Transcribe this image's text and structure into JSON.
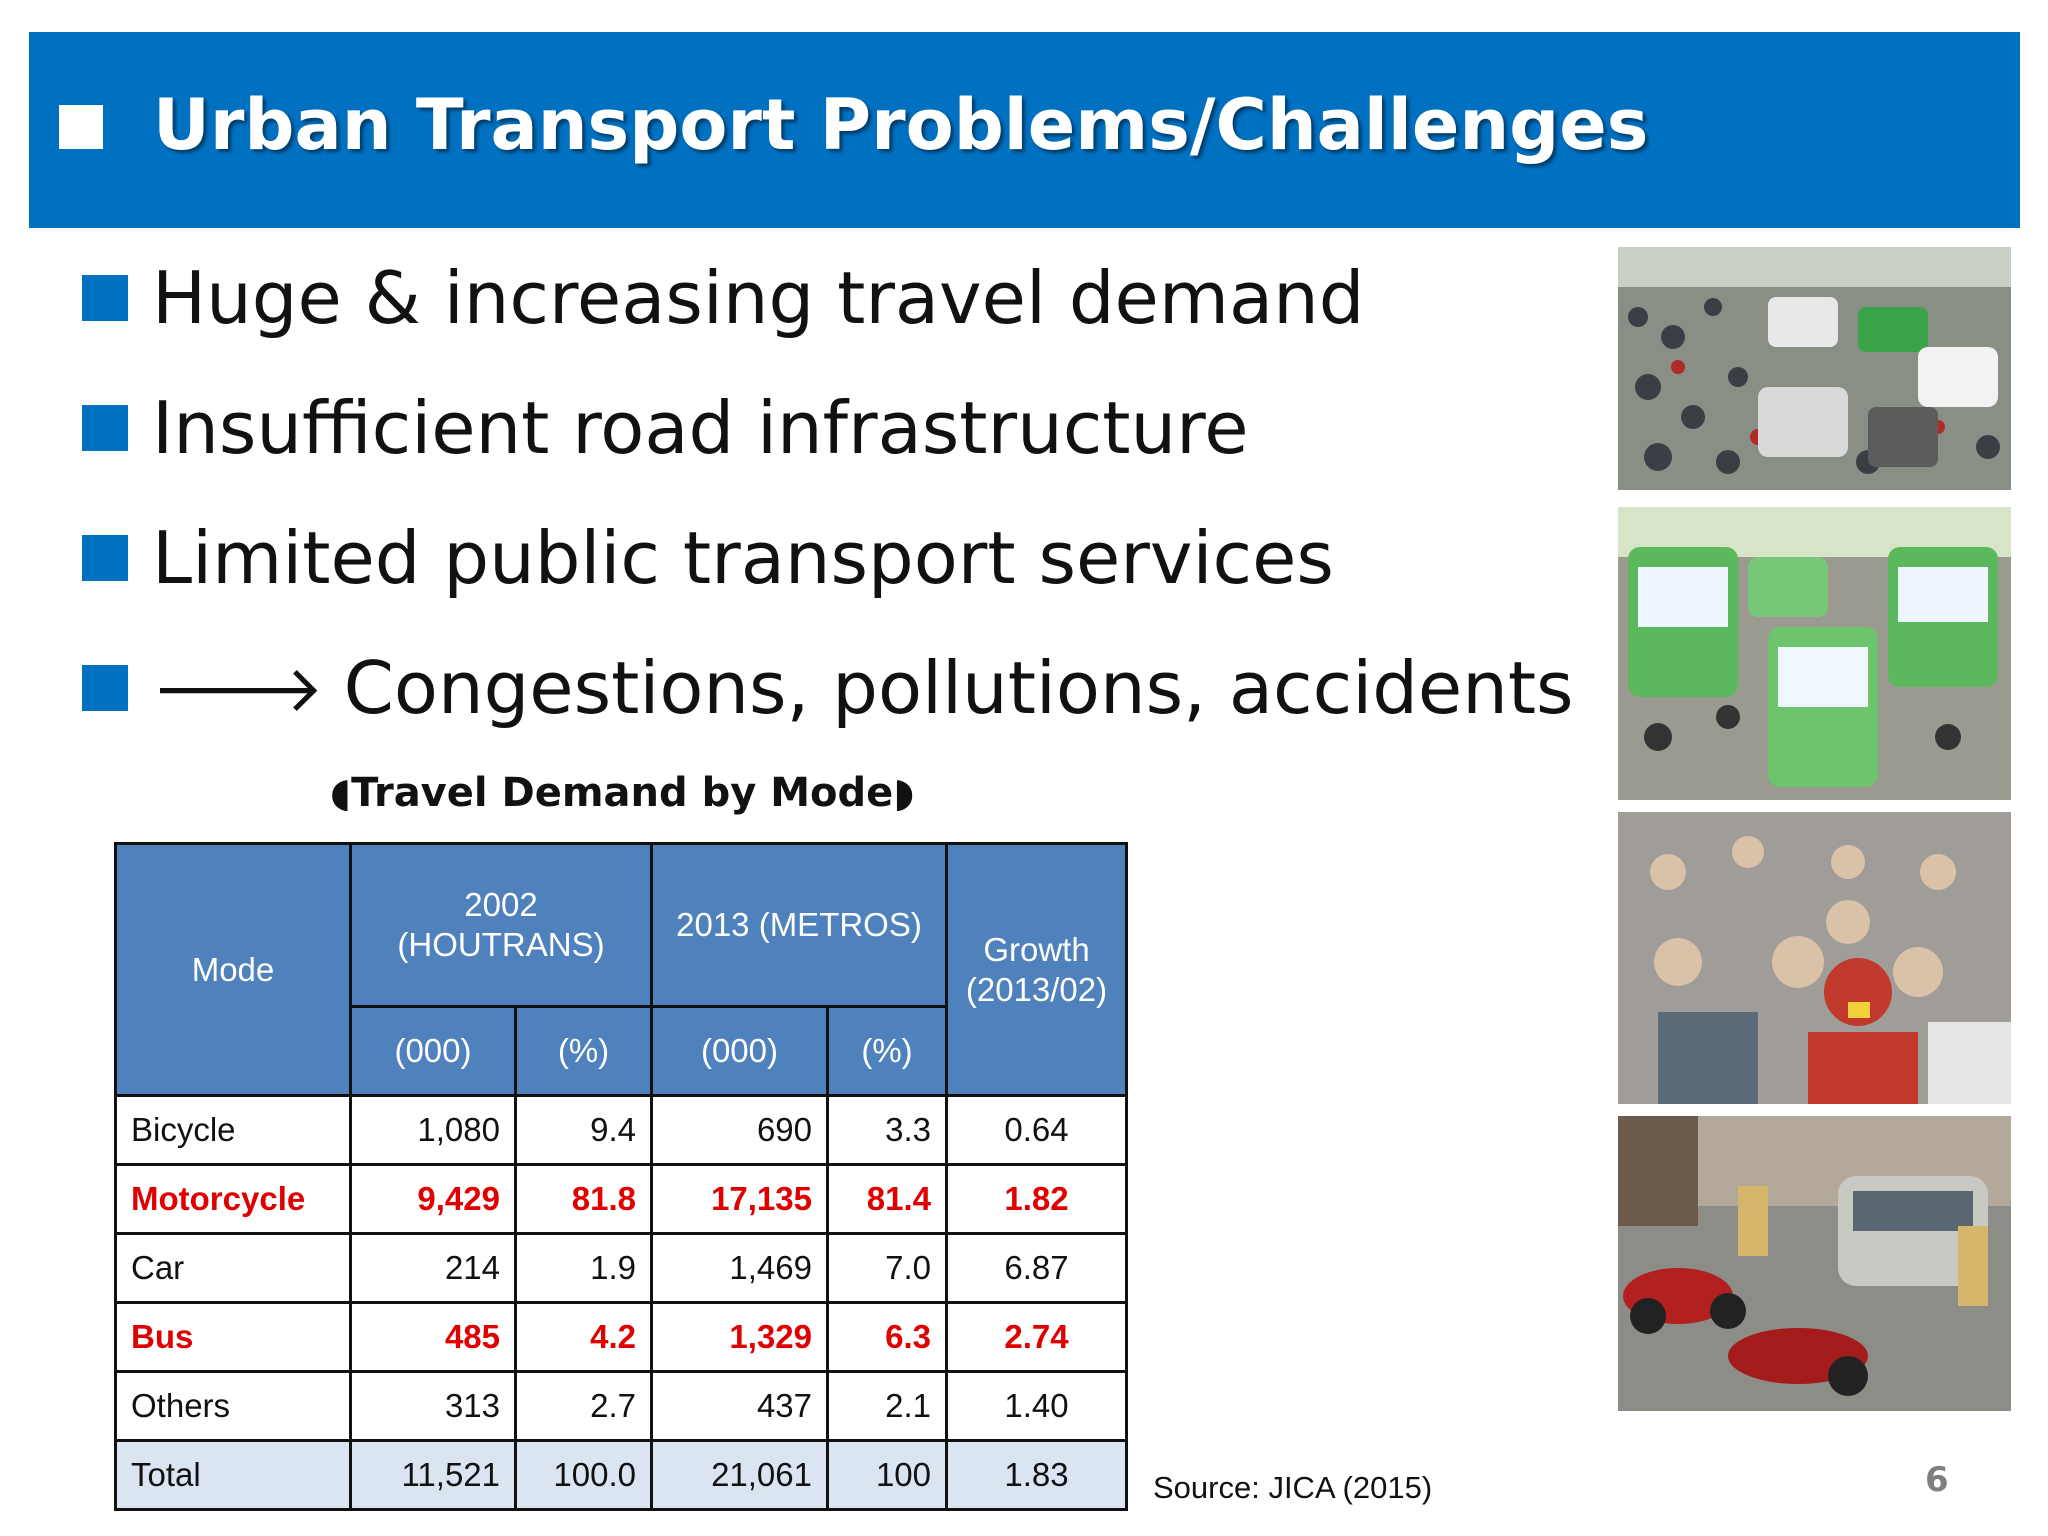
{
  "header": {
    "title": "Urban Transport Problems/Challenges"
  },
  "bullets": [
    {
      "text": "Huge & increasing travel demand"
    },
    {
      "text": "Insufficient road infrastructure"
    },
    {
      "text": "Limited public transport services"
    },
    {
      "arrow": "🡒",
      "text": "Congestions, pollutions, accidents"
    }
  ],
  "table": {
    "caption": "◖Travel Demand by Mode◗",
    "headers": {
      "mode": "Mode",
      "y2002": "2002 (HOUTRANS)",
      "y2013": "2013 (METROS)",
      "growth": "Growth (2013/02)",
      "k2002": "(000)",
      "p2002": "(%)",
      "k2013": "(000)",
      "p2013": "(%)"
    },
    "rows": [
      {
        "mode": "Bicycle",
        "k2002": "1,080",
        "p2002": "9.4",
        "k2013": "690",
        "p2013": "3.3",
        "growth": "0.64"
      },
      {
        "mode": "Motorcycle",
        "k2002": "9,429",
        "p2002": "81.8",
        "k2013": "17,135",
        "p2013": "81.4",
        "growth": "1.82"
      },
      {
        "mode": "Car",
        "k2002": "214",
        "p2002": "1.9",
        "k2013": "1,469",
        "p2013": "7.0",
        "growth": "6.87"
      },
      {
        "mode": "Bus",
        "k2002": "485",
        "p2002": "4.2",
        "k2013": "1,329",
        "p2013": "6.3",
        "growth": "2.74"
      },
      {
        "mode": "Others",
        "k2002": "313",
        "p2002": "2.7",
        "k2013": "437",
        "p2013": "2.1",
        "growth": "1.40"
      },
      {
        "mode": "Total",
        "k2002": "11,521",
        "p2002": "100.0",
        "k2013": "21,061",
        "p2013": "100",
        "growth": "1.83"
      }
    ]
  },
  "source": "Source: JICA (2015)",
  "page_number": "6",
  "colors": {
    "banner": "#0070c0",
    "table_header": "#4f81bd",
    "highlight": "#e00000",
    "total_row": "#dbe5f1"
  }
}
